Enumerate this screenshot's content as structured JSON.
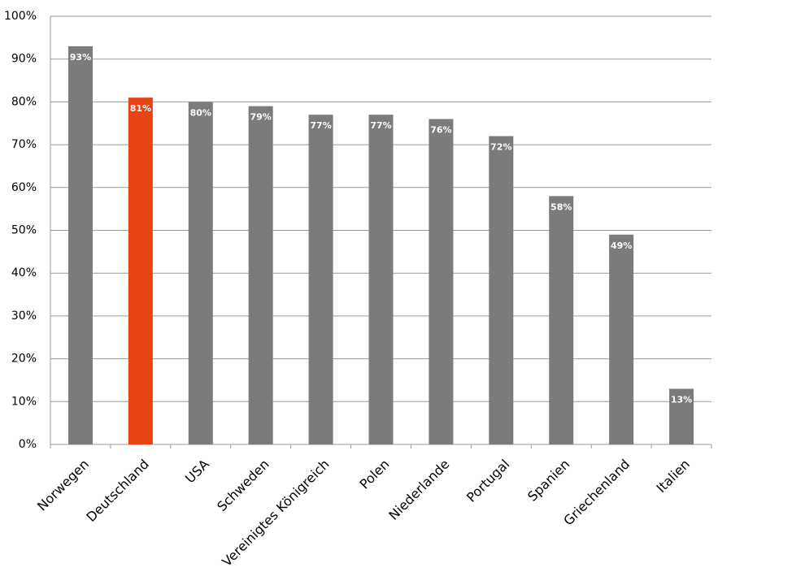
{
  "chart_data": {
    "type": "bar",
    "categories": [
      "Norwegen",
      "Deutschland",
      "USA",
      "Schweden",
      "Vereinigtes Königreich",
      "Polen",
      "Niederlande",
      "Portugal",
      "Spanien",
      "Griechenland",
      "Italien"
    ],
    "values": [
      93,
      81,
      80,
      79,
      77,
      77,
      76,
      72,
      58,
      49,
      13
    ],
    "value_labels": [
      "93%",
      "81%",
      "80%",
      "79%",
      "77%",
      "77%",
      "76%",
      "72%",
      "58%",
      "49%",
      "13%"
    ],
    "colors": [
      "#7b7b7d",
      "#e64415",
      "#7b7b7d",
      "#7b7b7d",
      "#7b7b7d",
      "#7b7b7d",
      "#7b7b7d",
      "#7b7b7d",
      "#7b7b7d",
      "#7b7b7d",
      "#7b7b7d"
    ],
    "ylim": [
      0,
      100
    ],
    "yticks": [
      {
        "value": 0,
        "label": "0%"
      },
      {
        "value": 10,
        "label": "10%"
      },
      {
        "value": 20,
        "label": "20%"
      },
      {
        "value": 30,
        "label": "30%"
      },
      {
        "value": 40,
        "label": "40%"
      },
      {
        "value": 50,
        "label": "50%"
      },
      {
        "value": 60,
        "label": "60%"
      },
      {
        "value": 70,
        "label": "70%"
      },
      {
        "value": 80,
        "label": "80%"
      },
      {
        "value": 90,
        "label": "90%"
      },
      {
        "value": 100,
        "label": "100%"
      }
    ],
    "grid": true
  }
}
